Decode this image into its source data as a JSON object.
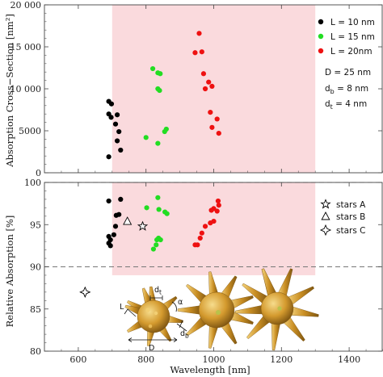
{
  "chart_data": [
    {
      "type": "scatter",
      "xlabel": "",
      "ylabel": "Absorption Cross−Section [nm²]",
      "xlim": [
        500,
        1500
      ],
      "ylim": [
        0,
        20000
      ],
      "x_ticks": [
        600,
        800,
        1000,
        1200,
        1400
      ],
      "y_ticks": [
        0,
        5000,
        10000,
        15000,
        20000
      ],
      "y_tick_labels": [
        "0",
        "5000",
        "10 000",
        "15 000",
        "20 000"
      ],
      "highlight_region": {
        "x": [
          700,
          1300
        ],
        "color": "#fadadd"
      },
      "legend_position": "top-right",
      "series": [
        {
          "name": "L = 10 nm",
          "color": "#000000",
          "points": [
            [
              690,
              8500
            ],
            [
              698,
              8200
            ],
            [
              690,
              7000
            ],
            [
              697,
              6600
            ],
            [
              715,
              6900
            ],
            [
              710,
              5800
            ],
            [
              720,
              4900
            ],
            [
              715,
              3800
            ],
            [
              725,
              2700
            ],
            [
              690,
              1900
            ]
          ]
        },
        {
          "name": "L = 15 nm",
          "color": "#22dd22",
          "points": [
            [
              820,
              12400
            ],
            [
              835,
              11900
            ],
            [
              842,
              11800
            ],
            [
              835,
              10000
            ],
            [
              840,
              9800
            ],
            [
              860,
              5200
            ],
            [
              855,
              4900
            ],
            [
              800,
              4200
            ],
            [
              835,
              3500
            ]
          ]
        },
        {
          "name": "L = 20nm",
          "color": "#ee1111",
          "points": [
            [
              957,
              16600
            ],
            [
              945,
              14300
            ],
            [
              965,
              14400
            ],
            [
              970,
              11800
            ],
            [
              985,
              10800
            ],
            [
              995,
              10300
            ],
            [
              975,
              10000
            ],
            [
              990,
              7200
            ],
            [
              995,
              5400
            ],
            [
              1010,
              6400
            ],
            [
              1015,
              4700
            ]
          ]
        }
      ],
      "annotations": [
        {
          "text": "D = 25 nm"
        },
        {
          "base": "d",
          "sub": "b",
          "rest": " = 8 nm"
        },
        {
          "base": "d",
          "sub": "t",
          "rest": " = 4 nm"
        }
      ]
    },
    {
      "type": "scatter",
      "xlabel": "Wavelength [nm]",
      "ylabel": "Relative Absorption [%]",
      "xlim": [
        500,
        1500
      ],
      "ylim": [
        80,
        100
      ],
      "x_ticks": [
        600,
        800,
        1000,
        1200,
        1400
      ],
      "y_ticks": [
        80,
        85,
        90,
        95,
        100
      ],
      "dashed_lines_y": [
        90,
        100
      ],
      "highlight_region": {
        "x": [
          700,
          1300
        ],
        "y": [
          89,
          100
        ],
        "color": "#fadadd"
      },
      "legend_position": "top-right",
      "series": [
        {
          "name": "",
          "color": "#000000",
          "points": [
            [
              690,
              97.8
            ],
            [
              712,
              96.1
            ],
            [
              720,
              96.2
            ],
            [
              725,
              98.0
            ],
            [
              710,
              94.8
            ],
            [
              705,
              93.8
            ],
            [
              690,
              93.6
            ],
            [
              695,
              93.2
            ],
            [
              690,
              92.8
            ],
            [
              695,
              92.5
            ]
          ]
        },
        {
          "name": "",
          "color": "#22dd22",
          "points": [
            [
              835,
              98.2
            ],
            [
              802,
              97.0
            ],
            [
              838,
              96.8
            ],
            [
              856,
              96.5
            ],
            [
              862,
              96.3
            ],
            [
              837,
              93.4
            ],
            [
              832,
              93.2
            ],
            [
              843,
              93.2
            ],
            [
              830,
              92.6
            ],
            [
              822,
              92.1
            ]
          ]
        },
        {
          "name": "",
          "color": "#ee1111",
          "points": [
            [
              1013,
              97.8
            ],
            [
              1015,
              97.3
            ],
            [
              1000,
              96.9
            ],
            [
              993,
              96.7
            ],
            [
              1010,
              96.6
            ],
            [
              1000,
              95.4
            ],
            [
              990,
              95.2
            ],
            [
              975,
              94.8
            ],
            [
              965,
              94.0
            ],
            [
              960,
              93.4
            ],
            [
              945,
              92.6
            ],
            [
              952,
              92.6
            ]
          ]
        },
        {
          "name": "stars A",
          "marker": "star",
          "points": [
            [
              790,
              94.8
            ]
          ]
        },
        {
          "name": "stars B",
          "marker": "triangle",
          "points": [
            [
              745,
              95.4
            ]
          ]
        },
        {
          "name": "stars C",
          "marker": "diamond4",
          "points": [
            [
              620,
              87.0
            ]
          ]
        }
      ],
      "inset_labels": {
        "L": "L",
        "D": "D",
        "alpha": "α",
        "dt_base": "d",
        "dt_sub": "t",
        "db_base": "d",
        "db_sub": "b"
      },
      "colors": {
        "gold": "#d9a43a",
        "gold_dark": "#8a5e12",
        "gold_light": "#f2cf73"
      }
    }
  ]
}
